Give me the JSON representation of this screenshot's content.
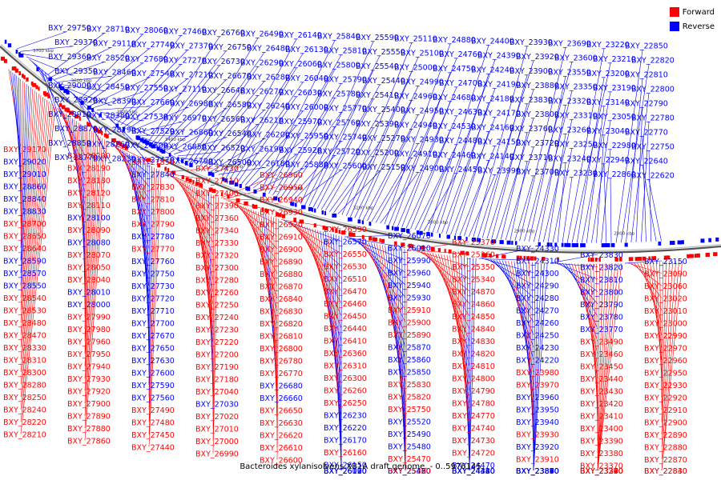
{
  "title": "Bacteroides xylanisolvens XB1A draft genome. - 0..5976145",
  "legend": {
    "items": [
      {
        "label": "Forward",
        "color": "#ff0000"
      },
      {
        "label": "Reverse",
        "color": "#0000ff"
      }
    ]
  },
  "colors": {
    "forward": "#ff0000",
    "reverse": "#0000ff",
    "backbone": "#7f7f7f"
  },
  "axis_ticks": [
    "3700 kbp",
    "3600 kbp",
    "3500 kbp",
    "3400 kbp",
    "3300 kbp",
    "3200 kbp",
    "3100 kbp",
    "3000 kbp",
    "2900 kbp",
    "2800 kbp"
  ],
  "reverse_labels": [
    "BXY_29750",
    "BXY_29370",
    "BXY_29360",
    "BXY_29350",
    "BXY_29000",
    "BXY_28920",
    "BXY_28910",
    "BXY_28870",
    "BXY_28850",
    "BXY_28770",
    "BXY_28710",
    "BXY_29110",
    "BXY_28520",
    "BXY_28460",
    "BXY_28450",
    "BXY_28390",
    "BXY_28380",
    "BXY_28290",
    "BXY_28260",
    "BXY_28230",
    "BXY_28060",
    "BXY_27740",
    "BXY_27680",
    "BXY_27540",
    "BXY_27550",
    "BXY_27660",
    "BXY_27530",
    "BXY_27520",
    "BXY_27500",
    "BXY_27470",
    "BXY_27460",
    "BXY_27370",
    "BXY_27270",
    "BXY_27210",
    "BXY_27110",
    "BXY_26980",
    "BXY_26970",
    "BXY_26860",
    "BXY_26850",
    "BXY_26790",
    "BXY_26760",
    "BXY_26750",
    "BXY_26730",
    "BXY_26670",
    "BXY_26640",
    "BXY_26580",
    "BXY_26560",
    "BXY_26540",
    "BXY_26520",
    "BXY_26500",
    "BXY_26490",
    "BXY_26480",
    "BXY_26290",
    "BXY_26280",
    "BXY_26270",
    "BXY_26240",
    "BXY_26210",
    "BXY_26200",
    "BXY_26190",
    "BXY_26180",
    "BXY_26140",
    "BXY_26130",
    "BXY_26060",
    "BXY_26040",
    "BXY_26030",
    "BXY_26000",
    "BXY_25970",
    "BXY_25950",
    "BXY_25920",
    "BXY_25880",
    "BXY_25840",
    "BXY_25810",
    "BXY_25800",
    "BXY_25790",
    "BXY_25780",
    "BXY_25770",
    "BXY_25760",
    "BXY_25740",
    "BXY_25720",
    "BXY_25600",
    "BXY_25590",
    "BXY_25550",
    "BXY_25540",
    "BXY_25440",
    "BXY_25410",
    "BXY_25400",
    "BXY_25390",
    "BXY_25270",
    "BXY_25200",
    "BXY_25150",
    "BXY_25110",
    "BXY_25100",
    "BXY_25000",
    "BXY_24990",
    "BXY_24960",
    "BXY_24950",
    "BXY_24940",
    "BXY_24930",
    "BXY_24910",
    "BXY_24900",
    "BXY_24880",
    "BXY_24760",
    "BXY_24750",
    "BXY_24700",
    "BXY_24680",
    "BXY_24630",
    "BXY_24530",
    "BXY_24480",
    "BXY_24460",
    "BXY_24450",
    "BXY_24400",
    "BXY_24390",
    "BXY_24240",
    "BXY_24190",
    "BXY_24180",
    "BXY_24170",
    "BXY_24160",
    "BXY_24150",
    "BXY_24140",
    "BXY_23990",
    "BXY_23930",
    "BXY_23920",
    "BXY_23900",
    "BXY_23880",
    "BXY_23830",
    "BXY_23800",
    "BXY_23760",
    "BXY_23720",
    "BXY_23710",
    "BXY_23700",
    "BXY_23690",
    "BXY_23600",
    "BXY_23550",
    "BXY_23350",
    "BXY_23320",
    "BXY_23310",
    "BXY_23260",
    "BXY_23250",
    "BXY_23240",
    "BXY_23230",
    "BXY_23220",
    "BXY_23210",
    "BXY_23200",
    "BXY_23190",
    "BXY_23140",
    "BXY_23050",
    "BXY_23040",
    "BXY_22980",
    "BXY_22940",
    "BXY_22860",
    "BXY_22850",
    "BXY_22820",
    "BXY_22810",
    "BXY_22800",
    "BXY_22790",
    "BXY_22780",
    "BXY_22770",
    "BXY_22750",
    "BXY_22640",
    "BXY_22620",
    "BXY_29010",
    "BXY_29020",
    "BXY_28840",
    "BXY_28860",
    "BXY_28830",
    "BXY_28590",
    "BXY_28550",
    "BXY_28570",
    "BXY_28010",
    "BXY_28000",
    "BXY_28080",
    "BXY_28100",
    "BXY_27840",
    "BXY_27700",
    "BXY_27600",
    "BXY_27630",
    "BXY_27590",
    "BXY_27650",
    "BXY_27670",
    "BXY_27710",
    "BXY_27720",
    "BXY_27730",
    "BXY_27750",
    "BXY_27760",
    "BXY_27780",
    "BXY_27560",
    "BXY_27030",
    "BXY_26680",
    "BXY_26660",
    "BXY_26570",
    "BXY_26230",
    "BXY_26220",
    "BXY_26170",
    "BXY_26150",
    "BXY_26120",
    "BXY_26110",
    "BXY_26100",
    "BXY_26090",
    "BXY_26070",
    "BXY_26010",
    "BXY_25990",
    "BXY_25960",
    "BXY_25940",
    "BXY_25930",
    "BXY_25870",
    "BXY_25860",
    "BXY_25850",
    "BXY_25520",
    "BXY_25490",
    "BXY_25480",
    "BXY_25460",
    "BXY_25450",
    "BXY_25430",
    "BXY_25420",
    "BXY_24470",
    "BXY_24440",
    "BXY_24430",
    "BXY_24420",
    "BXY_24380",
    "BXY_24340",
    "BXY_24330",
    "BXY_24310",
    "BXY_24300",
    "BXY_24290",
    "BXY_24280",
    "BXY_24270",
    "BXY_24260",
    "BXY_24250",
    "BXY_24230",
    "BXY_24220",
    "BXY_23960",
    "BXY_23950",
    "BXY_23940",
    "BXY_23920",
    "BXY_23890",
    "BXY_23880",
    "BXY_23870",
    "BXY_23860",
    "BXY_23850",
    "BXY_23840",
    "BXY_23830",
    "BXY_23820",
    "BXY_23810",
    "BXY_23800",
    "BXY_23790",
    "BXY_23780",
    "BXY_23770",
    "BXY_23150"
  ],
  "forward_labels": [
    "BXY_29170",
    "BXY_28650",
    "BXY_28480",
    "BXY_28640",
    "BXY_28300",
    "BXY_28470",
    "BXY_28120",
    "BXY_28240",
    "BXY_27950",
    "BXY_28700",
    "BXY_28330",
    "BXY_28040",
    "BXY_28530",
    "BXY_28180",
    "BXY_27890",
    "BXY_28540",
    "BXY_28190",
    "BXY_27900",
    "BXY_28200",
    "BXY_27940",
    "BXY_27880",
    "BXY_28210",
    "BXY_27920",
    "BXY_28220",
    "BXY_27930",
    "BXY_28250",
    "BXY_27960",
    "BXY_28280",
    "BXY_27980",
    "BXY_28310",
    "BXY_27990",
    "BXY_28050",
    "BXY_28070",
    "BXY_28090",
    "BXY_28110",
    "BXY_27770",
    "BXY_27790",
    "BXY_27810",
    "BXY_27830",
    "BXY_27850",
    "BXY_27860",
    "BXY_27490",
    "BXY_27480",
    "BXY_27450",
    "BXY_27440",
    "BXY_27410",
    "BXY_27400",
    "BXY_27360",
    "BXY_27340",
    "BXY_27330",
    "BXY_27320",
    "BXY_27280",
    "BXY_27260",
    "BXY_27250",
    "BXY_27240",
    "BXY_27230",
    "BXY_27220",
    "BXY_27200",
    "BXY_27190",
    "BXY_27180",
    "BXY_27010",
    "BXY_27000",
    "BXY_27020",
    "BXY_27040",
    "BXY_27300",
    "BXY_27390",
    "BXY_27430",
    "BXY_27800",
    "BXY_26960",
    "BXY_26950",
    "BXY_26940",
    "BXY_26930",
    "BXY_26920",
    "BXY_26910",
    "BXY_26900",
    "BXY_26890",
    "BXY_26880",
    "BXY_26870",
    "BXY_26990",
    "BXY_26630",
    "BXY_26770",
    "BXY_26780",
    "BXY_26800",
    "BXY_26810",
    "BXY_26820",
    "BXY_26830",
    "BXY_26840",
    "BXY_26620",
    "BXY_26610",
    "BXY_26600",
    "BXY_26590",
    "BXY_26550",
    "BXY_26530",
    "BXY_26510",
    "BXY_26470",
    "BXY_26460",
    "BXY_26450",
    "BXY_26440",
    "BXY_26410",
    "BXY_26360",
    "BXY_26300",
    "BXY_26310",
    "BXY_26260",
    "BXY_26250",
    "BXY_26160",
    "BXY_26650",
    "BXY_25750",
    "BXY_25820",
    "BXY_25830",
    "BXY_25890",
    "BXY_25900",
    "BXY_25910",
    "BXY_25340",
    "BXY_25350",
    "BXY_25360",
    "BXY_25370",
    "BXY_25380",
    "BXY_25470",
    "BXY_24720",
    "BXY_24730",
    "BXY_24740",
    "BXY_24770",
    "BXY_24780",
    "BXY_24790",
    "BXY_24800",
    "BXY_24810",
    "BXY_24820",
    "BXY_24830",
    "BXY_24840",
    "BXY_24850",
    "BXY_24860",
    "BXY_24870",
    "BXY_23910",
    "BXY_23930",
    "BXY_23970",
    "BXY_23980",
    "BXY_23410",
    "BXY_23420",
    "BXY_23430",
    "BXY_23440",
    "BXY_23450",
    "BXY_23460",
    "BXY_23270",
    "BXY_23280",
    "BXY_23290",
    "BXY_23300",
    "BXY_23330",
    "BXY_23340",
    "BXY_23370",
    "BXY_23380",
    "BXY_23390",
    "BXY_23400",
    "BXY_23490",
    "BXY_22830",
    "BXY_22840",
    "BXY_22870",
    "BXY_22880",
    "BXY_22890",
    "BXY_22900",
    "BXY_22910",
    "BXY_22920",
    "BXY_22930",
    "BXY_22950",
    "BXY_22960",
    "BXY_22970",
    "BXY_22990",
    "BXY_23000",
    "BXY_23010",
    "BXY_23020",
    "BXY_23060",
    "BXY_23090"
  ]
}
